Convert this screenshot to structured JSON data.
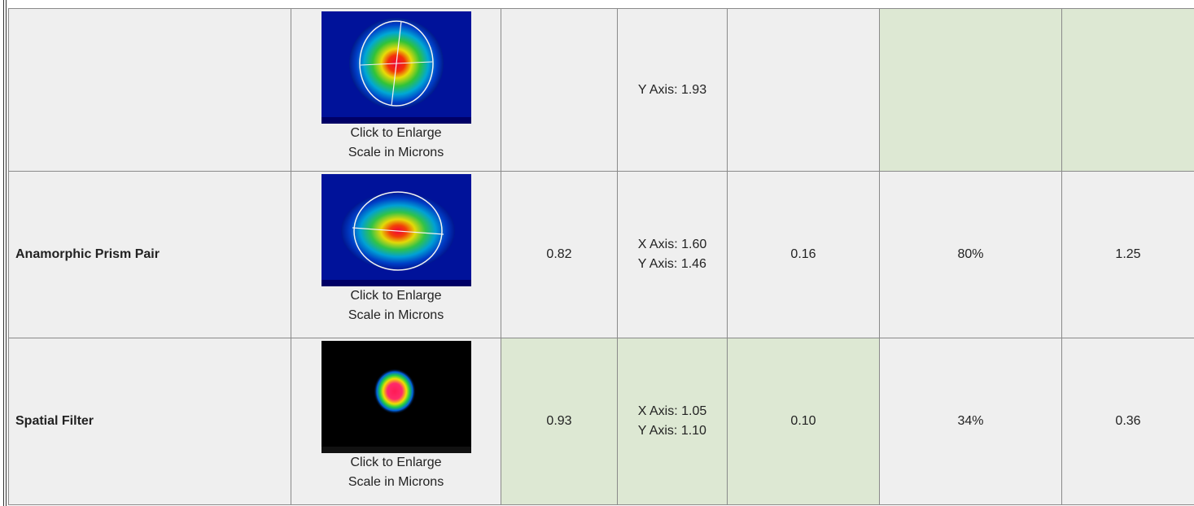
{
  "rows": [
    {
      "name": "",
      "thumbnail_icon": "beam-profile-thumbnail",
      "click_label": "Click to Enlarge",
      "scale_label": "Scale in Microns",
      "col3": "",
      "axis_lines": [
        "Y Axis: 1.93"
      ],
      "col5": "",
      "col6": "",
      "col7": ""
    },
    {
      "name": "Anamorphic Prism Pair",
      "thumbnail_icon": "beam-profile-thumbnail",
      "click_label": "Click to Enlarge",
      "scale_label": "Scale in Microns",
      "col3": "0.82",
      "axis_lines": [
        "X Axis: 1.60",
        "Y Axis: 1.46"
      ],
      "col5": "0.16",
      "col6": "80%",
      "col7": "1.25"
    },
    {
      "name": "Spatial Filter",
      "thumbnail_icon": "beam-profile-thumbnail",
      "click_label": "Click to Enlarge",
      "scale_label": "Scale in Microns",
      "col3": "0.93",
      "axis_lines": [
        "X Axis: 1.05",
        "Y Axis: 1.10"
      ],
      "col5": "0.10",
      "col6": "34%",
      "col7": "0.36"
    }
  ],
  "colors": {
    "cell_bg": "#efefef",
    "highlight_bg": "#dde8d3",
    "border": "#8a8a8a"
  }
}
